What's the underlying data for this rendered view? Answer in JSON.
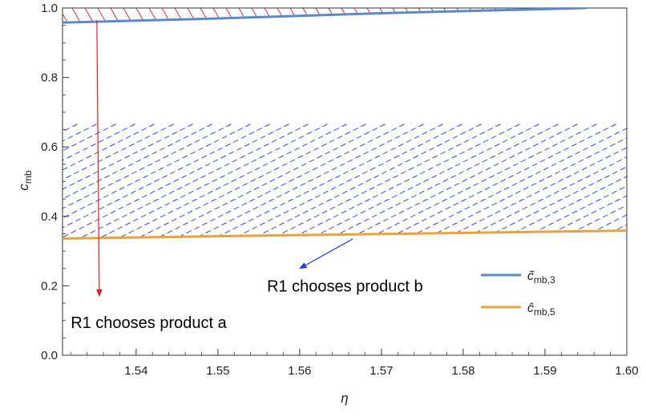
{
  "chart_data": {
    "type": "line",
    "xlabel": "η",
    "ylabel": "c",
    "ylabel_sub": "mb",
    "xlim": [
      1.531,
      1.6
    ],
    "ylim": [
      0.0,
      1.0
    ],
    "x_ticks": [
      1.54,
      1.55,
      1.56,
      1.57,
      1.58,
      1.59,
      1.6
    ],
    "x_tick_labels": [
      "1.54",
      "1.55",
      "1.56",
      "1.57",
      "1.58",
      "1.59",
      "1.60"
    ],
    "y_ticks": [
      0.0,
      0.2,
      0.4,
      0.6,
      0.8,
      1.0
    ],
    "y_tick_labels": [
      "0.0",
      "0.2",
      "0.4",
      "0.6",
      "0.8",
      "1.0"
    ],
    "grid": false,
    "legend_position": "bottom-right",
    "series": [
      {
        "name": "c̃",
        "name_sub": "mb,3",
        "color": "#5b8bc6",
        "x": [
          1.531,
          1.55,
          1.57,
          1.595
        ],
        "y": [
          0.958,
          0.97,
          0.985,
          1.0
        ]
      },
      {
        "name": "ĉ",
        "name_sub": "mb,5",
        "color": "#e8a33c",
        "x": [
          1.531,
          1.56,
          1.6
        ],
        "y": [
          0.336,
          0.346,
          0.359
        ]
      }
    ],
    "regions": [
      {
        "label": "R1 chooses product b",
        "color": "#1f3fd6",
        "hatch": "dashed"
      },
      {
        "label": "R1 chooses product a",
        "color": "#e02020",
        "hatch": "solid"
      }
    ],
    "annotations": [
      {
        "text": "R1 chooses product b",
        "x": 1.556,
        "y": 0.2,
        "arrow_to": [
          1.56,
          0.25
        ],
        "arrow_from": [
          1.5665,
          0.335
        ],
        "arrow_color": "#1f3fd6"
      },
      {
        "text": "R1 chooses product a",
        "x": 1.532,
        "y": 0.095,
        "arrow_to": [
          1.5355,
          0.17
        ],
        "arrow_from": [
          1.5352,
          0.965
        ],
        "arrow_color": "#e02020"
      }
    ]
  }
}
